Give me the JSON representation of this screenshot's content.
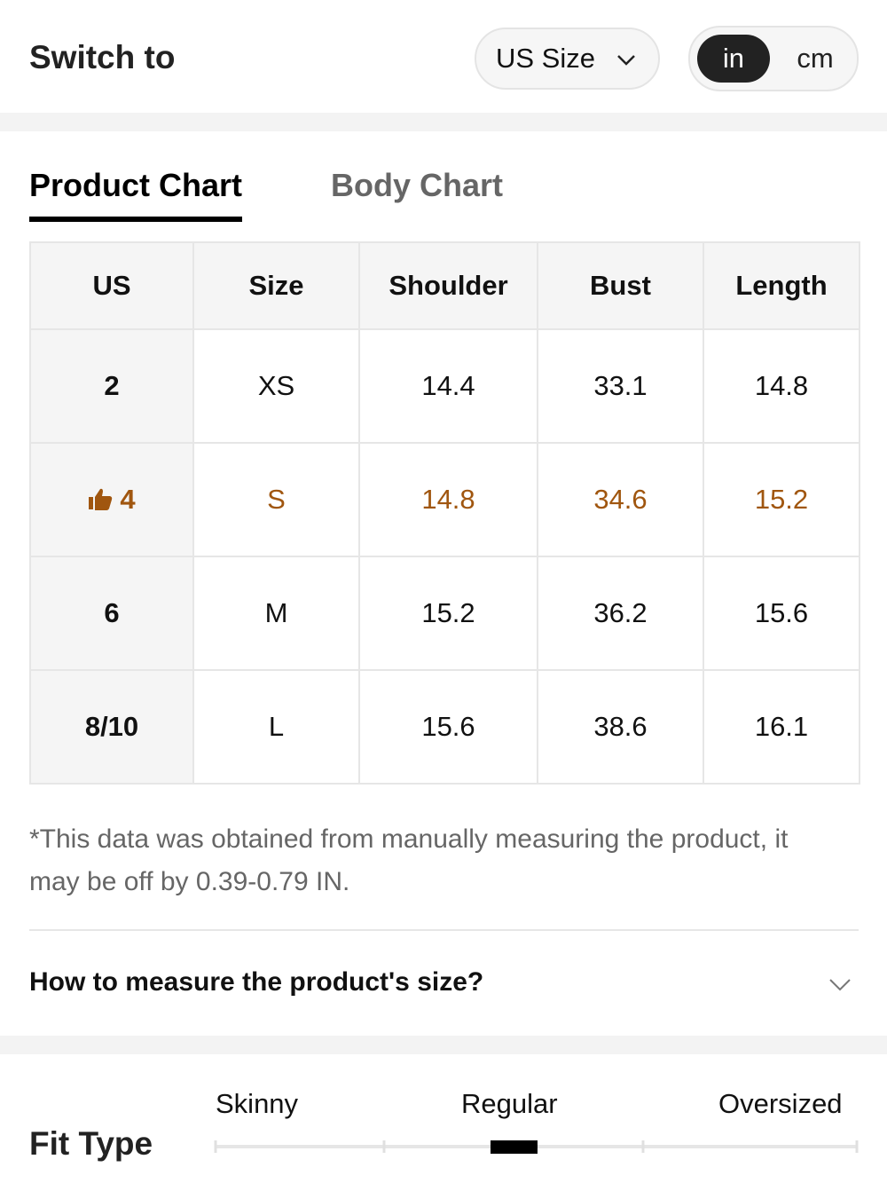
{
  "header": {
    "title": "Switch to",
    "size_system": "US Size",
    "units": [
      "in",
      "cm"
    ],
    "active_unit": 0
  },
  "tabs": {
    "items": [
      "Product Chart",
      "Body Chart"
    ],
    "active": 0
  },
  "table": {
    "columns": [
      "US",
      "Size",
      "Shoulder",
      "Bust",
      "Length"
    ],
    "rows": [
      [
        "2",
        "XS",
        "14.4",
        "33.1",
        "14.8"
      ],
      [
        "4",
        "S",
        "14.8",
        "34.6",
        "15.2"
      ],
      [
        "6",
        "M",
        "15.2",
        "36.2",
        "15.6"
      ],
      [
        "8/10",
        "L",
        "15.6",
        "38.6",
        "16.1"
      ]
    ],
    "recommended_row": 1
  },
  "note": "*This data was obtained from manually measuring the product, it may be off by 0.39-0.79 IN.",
  "accordion": {
    "title": "How to measure the product's size?"
  },
  "fit_type": {
    "title": "Fit Type",
    "labels": [
      "Skinny",
      "Regular",
      "Oversized"
    ],
    "selected": 1
  }
}
